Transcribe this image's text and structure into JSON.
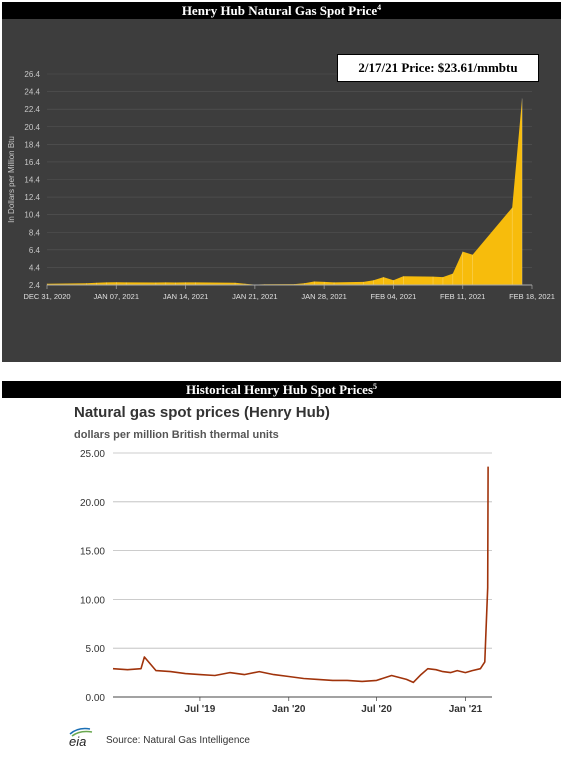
{
  "banners": {
    "top": {
      "text": "Henry Hub Natural Gas Spot Price",
      "sup": "4"
    },
    "bottom": {
      "text": "Historical Henry Hub Spot Prices",
      "sup": "5"
    }
  },
  "colors": {
    "fill": "#f7bc0c",
    "panel": "#3d3d3d",
    "line2": "#a0330b"
  },
  "chart_data": [
    {
      "type": "area",
      "ylabel": "In Dollars per Million Btu",
      "callout": "2/17/21 Price: $23.61/mmbtu",
      "yticks": [
        "26.4",
        "24.4",
        "22.4",
        "20.4",
        "18.4",
        "16.4",
        "14.4",
        "12.4",
        "10.4",
        "8.4",
        "6.4",
        "4.4",
        "2.4"
      ],
      "ylim": [
        2.4,
        26.4
      ],
      "xticks": [
        "DEC 31, 2020",
        "JAN 07, 2021",
        "JAN 14, 2021",
        "JAN 21, 2021",
        "JAN 28, 2021",
        "FEB 04, 2021",
        "FEB 11, 2021",
        "FEB 18, 2021"
      ],
      "x": [
        "2020-12-31",
        "2021-01-04",
        "2021-01-05",
        "2021-01-06",
        "2021-01-07",
        "2021-01-08",
        "2021-01-11",
        "2021-01-12",
        "2021-01-13",
        "2021-01-14",
        "2021-01-15",
        "2021-01-19",
        "2021-01-20",
        "2021-01-21",
        "2021-01-22",
        "2021-01-25",
        "2021-01-26",
        "2021-01-27",
        "2021-01-28",
        "2021-01-29",
        "2021-02-01",
        "2021-02-02",
        "2021-02-03",
        "2021-02-04",
        "2021-02-05",
        "2021-02-08",
        "2021-02-09",
        "2021-02-10",
        "2021-02-11",
        "2021-02-12",
        "2021-02-16",
        "2021-02-17"
      ],
      "y": [
        2.55,
        2.6,
        2.65,
        2.7,
        2.72,
        2.7,
        2.68,
        2.7,
        2.69,
        2.7,
        2.7,
        2.65,
        2.55,
        2.45,
        2.48,
        2.5,
        2.6,
        2.8,
        2.75,
        2.7,
        2.75,
        2.95,
        3.3,
        2.95,
        3.4,
        3.35,
        3.3,
        3.7,
        6.2,
        5.85,
        11.2,
        23.61
      ]
    },
    {
      "type": "line",
      "title": "Natural gas spot prices (Henry Hub)",
      "subtitle": "dollars per million British thermal units",
      "yticks": [
        "25.00",
        "20.00",
        "15.00",
        "10.00",
        "5.00",
        "0.00"
      ],
      "ylim": [
        0,
        25
      ],
      "xticks": [
        "Jul '19",
        "Jan '20",
        "Jul '20",
        "Jan '21"
      ],
      "x": [
        "2019-01-02",
        "2019-02-01",
        "2019-03-01",
        "2019-03-08",
        "2019-04-01",
        "2019-05-01",
        "2019-06-01",
        "2019-07-01",
        "2019-08-01",
        "2019-09-01",
        "2019-10-01",
        "2019-11-01",
        "2019-12-01",
        "2020-01-01",
        "2020-02-01",
        "2020-03-01",
        "2020-04-01",
        "2020-05-01",
        "2020-06-01",
        "2020-07-01",
        "2020-08-01",
        "2020-09-01",
        "2020-09-15",
        "2020-10-01",
        "2020-10-15",
        "2020-11-01",
        "2020-11-15",
        "2020-12-01",
        "2020-12-15",
        "2021-01-01",
        "2021-01-15",
        "2021-02-01",
        "2021-02-10",
        "2021-02-12",
        "2021-02-16",
        "2021-02-17"
      ],
      "y": [
        2.9,
        2.8,
        2.9,
        4.1,
        2.7,
        2.6,
        2.4,
        2.3,
        2.2,
        2.5,
        2.3,
        2.6,
        2.3,
        2.1,
        1.9,
        1.8,
        1.7,
        1.7,
        1.6,
        1.7,
        2.2,
        1.8,
        1.5,
        2.3,
        2.9,
        2.8,
        2.6,
        2.5,
        2.7,
        2.5,
        2.7,
        2.9,
        3.6,
        6.0,
        11.2,
        23.61
      ],
      "source": "Source: Natural Gas Intelligence",
      "logo": "eia"
    }
  ]
}
